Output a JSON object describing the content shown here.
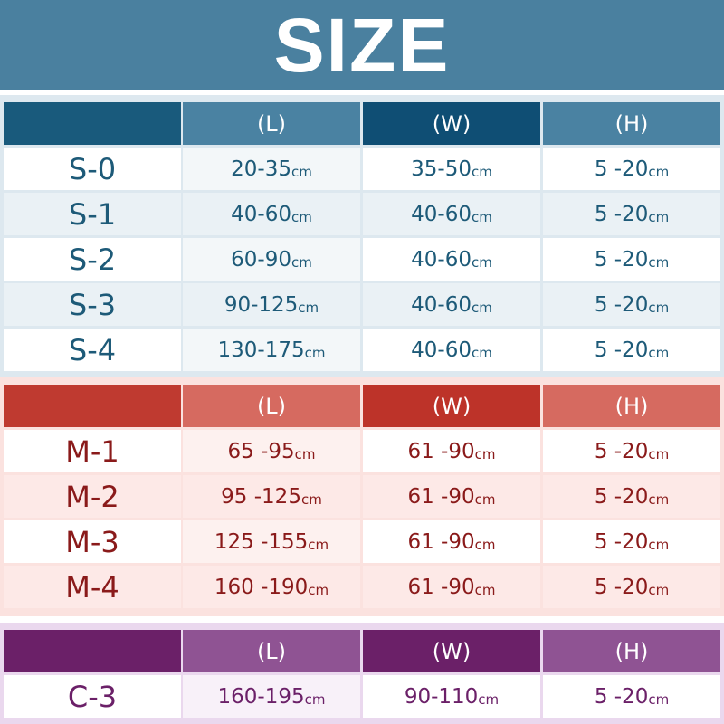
{
  "title": "SIZE",
  "sections": [
    {
      "header": [
        "(L)",
        "(W)",
        "(H)"
      ],
      "rows": [
        {
          "label": "S-0",
          "cells": [
            {
              "text": "20-35",
              "unit": "cm"
            },
            {
              "text": "35-50",
              "unit": "cm"
            },
            {
              "text": "5 -20",
              "unit": "cm"
            }
          ]
        },
        {
          "label": "S-1",
          "cells": [
            {
              "text": "40-60",
              "unit": "cm"
            },
            {
              "text": "40-60",
              "unit": "cm"
            },
            {
              "text": "5 -20",
              "unit": "cm"
            }
          ]
        },
        {
          "label": "S-2",
          "cells": [
            {
              "text": "60-90",
              "unit": "cm"
            },
            {
              "text": "40-60",
              "unit": "cm"
            },
            {
              "text": "5 -20",
              "unit": "cm"
            }
          ]
        },
        {
          "label": "S-3",
          "cells": [
            {
              "text": "90-125",
              "unit": "cm"
            },
            {
              "text": "40-60",
              "unit": "cm"
            },
            {
              "text": "5 -20",
              "unit": "cm"
            }
          ]
        },
        {
          "label": "S-4",
          "cells": [
            {
              "text": "130-175",
              "unit": "cm"
            },
            {
              "text": "40-60",
              "unit": "cm"
            },
            {
              "text": "5 -20",
              "unit": "cm"
            }
          ]
        }
      ]
    },
    {
      "header": [
        "(L)",
        "(W)",
        "(H)"
      ],
      "rows": [
        {
          "label": "M-1",
          "cells": [
            {
              "text": "65 -95",
              "unit": "cm"
            },
            {
              "text": "61 -90",
              "unit": "cm"
            },
            {
              "text": "5 -20",
              "unit": "cm"
            }
          ]
        },
        {
          "label": "M-2",
          "cells": [
            {
              "text": "95 -125",
              "unit": "cm"
            },
            {
              "text": "61 -90",
              "unit": "cm"
            },
            {
              "text": "5 -20",
              "unit": "cm"
            }
          ]
        },
        {
          "label": "M-3",
          "cells": [
            {
              "text": "125 -155",
              "unit": "cm"
            },
            {
              "text": "61 -90",
              "unit": "cm"
            },
            {
              "text": "5 -20",
              "unit": "cm"
            }
          ]
        },
        {
          "label": "M-4",
          "cells": [
            {
              "text": "160 -190",
              "unit": "cm"
            },
            {
              "text": "61 -90",
              "unit": "cm"
            },
            {
              "text": "5 -20",
              "unit": "cm"
            }
          ]
        }
      ]
    },
    {
      "header": [
        "(L)",
        "(W)",
        "(H)"
      ],
      "rows": [
        {
          "label": "C-3",
          "cells": [
            {
              "text": "160-195",
              "unit": "cm"
            },
            {
              "text": "90-110",
              "unit": "cm"
            },
            {
              "text": "5 -20",
              "unit": "cm"
            }
          ]
        }
      ]
    }
  ]
}
